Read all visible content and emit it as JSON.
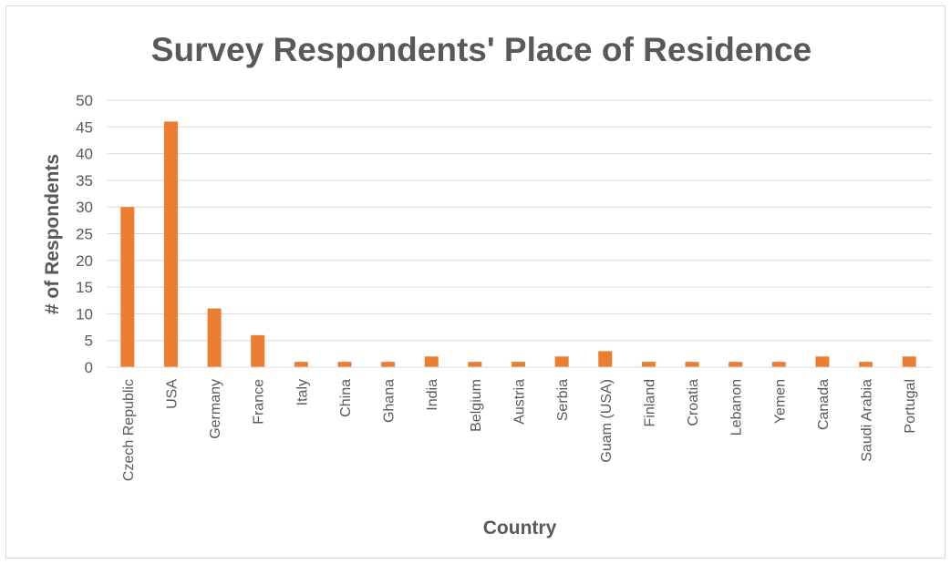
{
  "chart_data": {
    "type": "bar",
    "title": "Survey Respondents' Place of Residence",
    "xlabel": "Country",
    "ylabel": "# of Respondents",
    "ylim": [
      0,
      50
    ],
    "yticks": [
      0,
      5,
      10,
      15,
      20,
      25,
      30,
      35,
      40,
      45,
      50
    ],
    "grid": true,
    "legend": "none",
    "bar_color": "#ED7D31",
    "categories": [
      "Czech Republic",
      "USA",
      "Germany",
      "France",
      "Italy",
      "China",
      "Ghana",
      "India",
      "Belgium",
      "Austria",
      "Serbia",
      "Guam (USA)",
      "Finland",
      "Croatia",
      "Lebanon",
      "Yemen",
      "Canada",
      "Saudi Arabia",
      "Portugal"
    ],
    "values": [
      30,
      46,
      11,
      6,
      1,
      1,
      1,
      2,
      1,
      1,
      2,
      3,
      1,
      1,
      1,
      1,
      2,
      1,
      2
    ]
  }
}
